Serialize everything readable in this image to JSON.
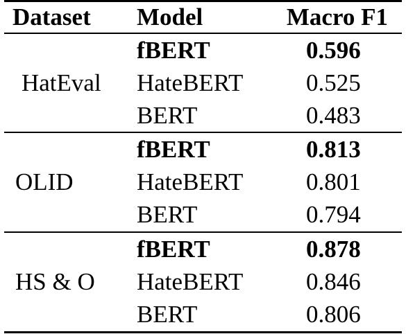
{
  "table": {
    "headers": {
      "dataset": "Dataset",
      "model": "Model",
      "macro_f1": "Macro F1"
    },
    "groups": [
      {
        "dataset": "HatEval",
        "rows": [
          {
            "model": "fBERT",
            "score": "0.596",
            "best": true
          },
          {
            "model": "HateBERT",
            "score": "0.525",
            "best": false
          },
          {
            "model": "BERT",
            "score": "0.483",
            "best": false
          }
        ]
      },
      {
        "dataset": "OLID",
        "rows": [
          {
            "model": "fBERT",
            "score": "0.813",
            "best": true
          },
          {
            "model": "HateBERT",
            "score": "0.801",
            "best": false
          },
          {
            "model": "BERT",
            "score": "0.794",
            "best": false
          }
        ]
      },
      {
        "dataset": "HS & O",
        "rows": [
          {
            "model": "fBERT",
            "score": "0.878",
            "best": true
          },
          {
            "model": "HateBERT",
            "score": "0.846",
            "best": false
          },
          {
            "model": "BERT",
            "score": "0.806",
            "best": false
          }
        ]
      }
    ]
  }
}
